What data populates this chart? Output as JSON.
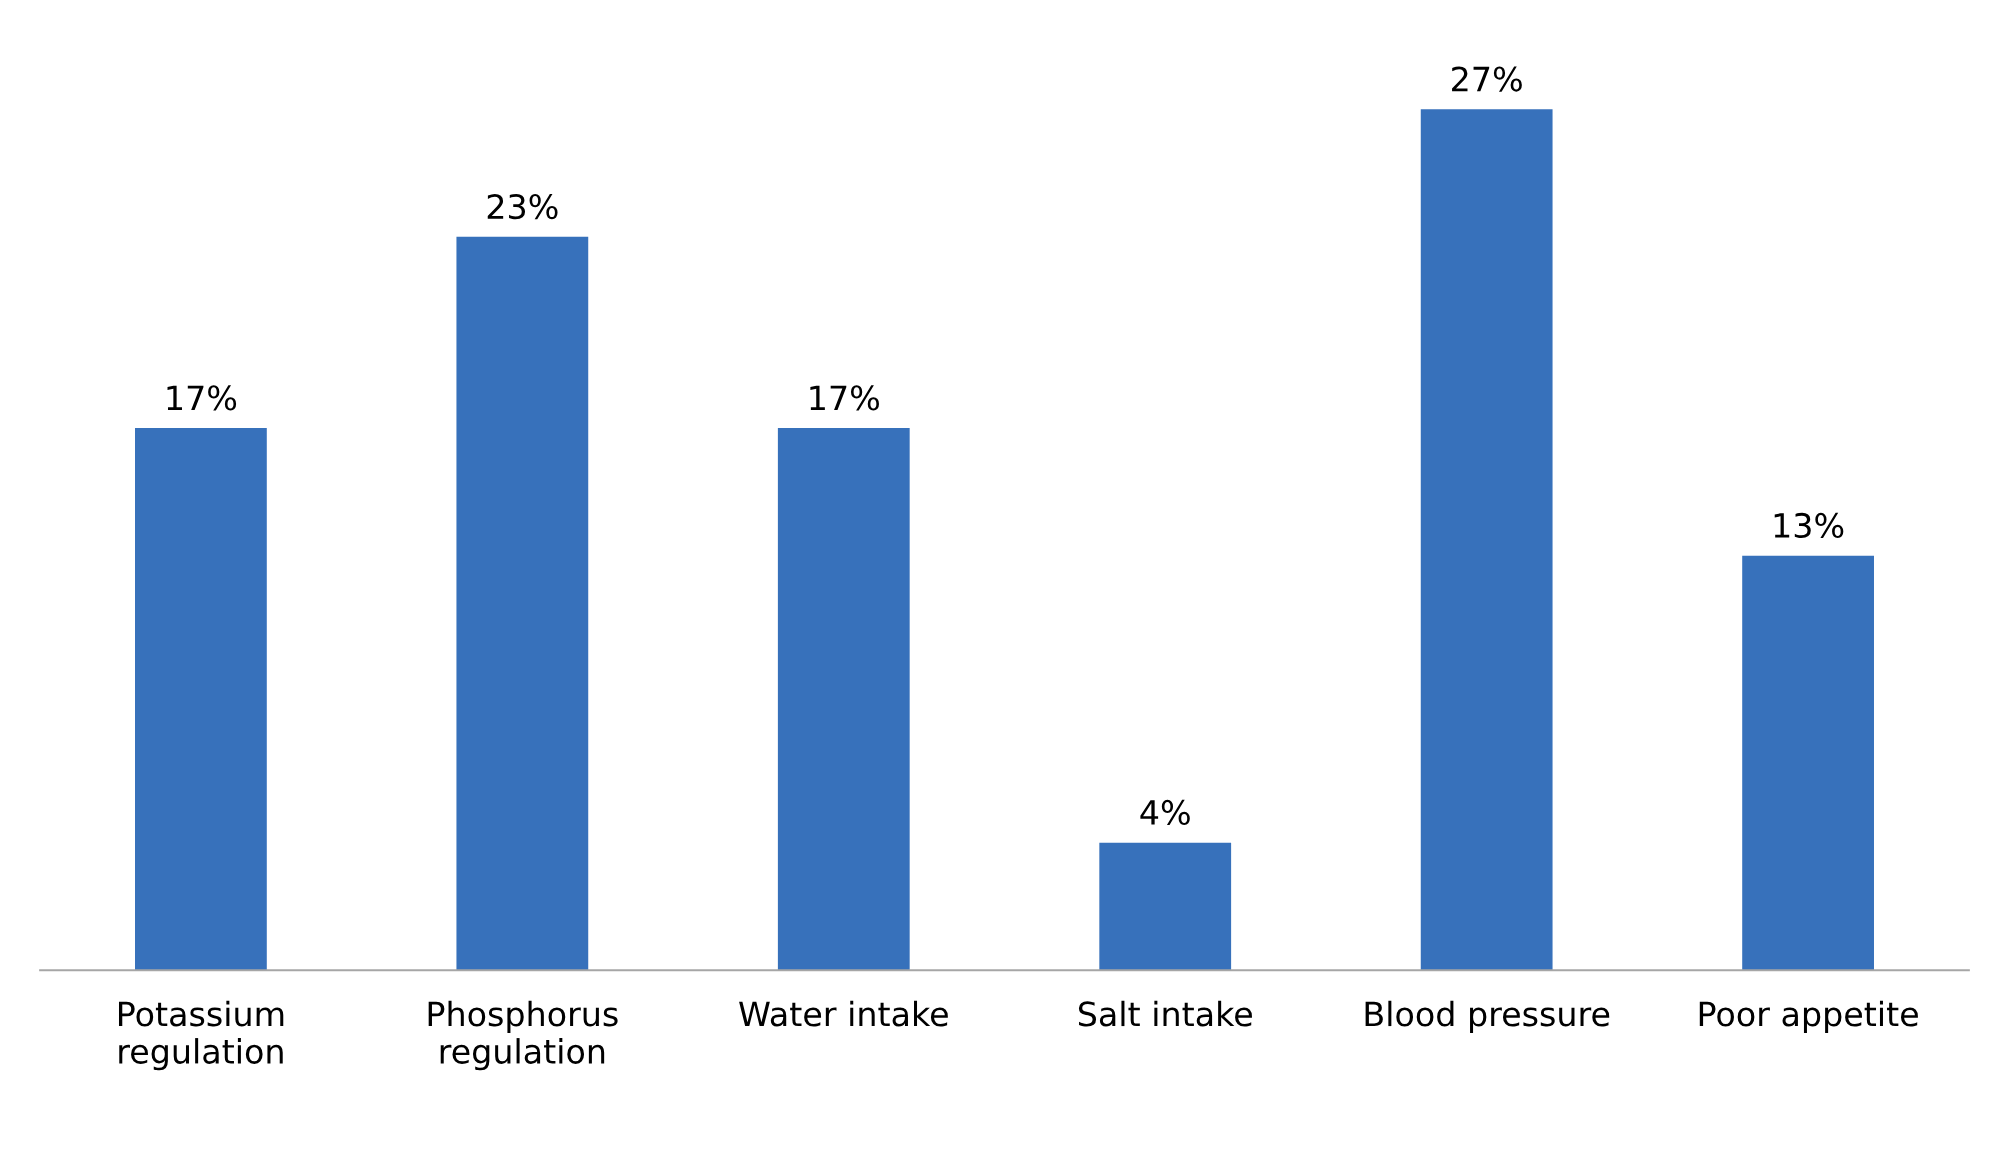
{
  "chart_data": {
    "type": "bar",
    "categories": [
      "Potassium\nregulation",
      "Phosphorus\nregulation",
      "Water intake",
      "Salt intake",
      "Blood pressure",
      "Poor appetite"
    ],
    "values": [
      17,
      23,
      17,
      4,
      27,
      13
    ],
    "value_labels": [
      "17%",
      "23%",
      "17%",
      "4%",
      "27%",
      "13%"
    ],
    "color": "#3771bb"
  }
}
